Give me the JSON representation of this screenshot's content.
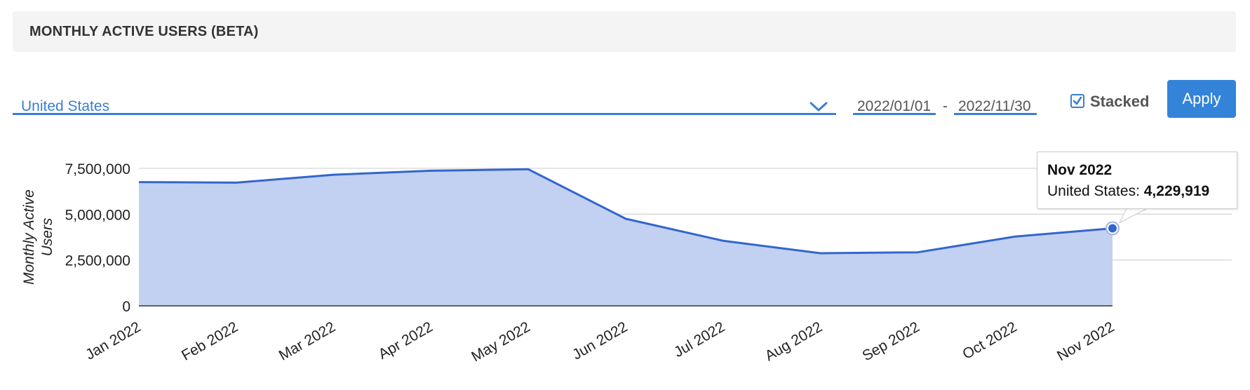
{
  "header": {
    "title": "MONTHLY ACTIVE USERS (BETA)"
  },
  "filters": {
    "country": "United States",
    "start_date": "2022/01/01",
    "date_separator": "-",
    "end_date": "2022/11/30",
    "stacked_label": "Stacked",
    "stacked_checked": true,
    "apply_label": "Apply"
  },
  "tooltip": {
    "title": "Nov 2022",
    "series_label": "United States:",
    "value": "4,229,919"
  },
  "colors": {
    "accent": "#3a7ed6",
    "line": "#3366cc",
    "area": "#c2d1f2"
  },
  "chart_data": {
    "type": "area",
    "title": "",
    "xlabel": "",
    "ylabel": "Monthly Active Users",
    "categories": [
      "Jan 2022",
      "Feb 2022",
      "Mar 2022",
      "Apr 2022",
      "May 2022",
      "Jun 2022",
      "Jul 2022",
      "Aug 2022",
      "Sep 2022",
      "Oct 2022",
      "Nov 2022"
    ],
    "series": [
      {
        "name": "United States",
        "values": [
          6750000,
          6720000,
          7150000,
          7370000,
          7450000,
          4750000,
          3550000,
          2870000,
          2920000,
          3780000,
          4229919
        ]
      }
    ],
    "ylim": [
      0,
      7500000
    ],
    "yticks": [
      0,
      2500000,
      5000000,
      7500000
    ],
    "ytick_labels": [
      "0",
      "2,500,000",
      "5,000,000",
      "7,500,000"
    ],
    "grid": true,
    "stacked": true,
    "legend": "none",
    "highlighted_point": "Nov 2022"
  }
}
